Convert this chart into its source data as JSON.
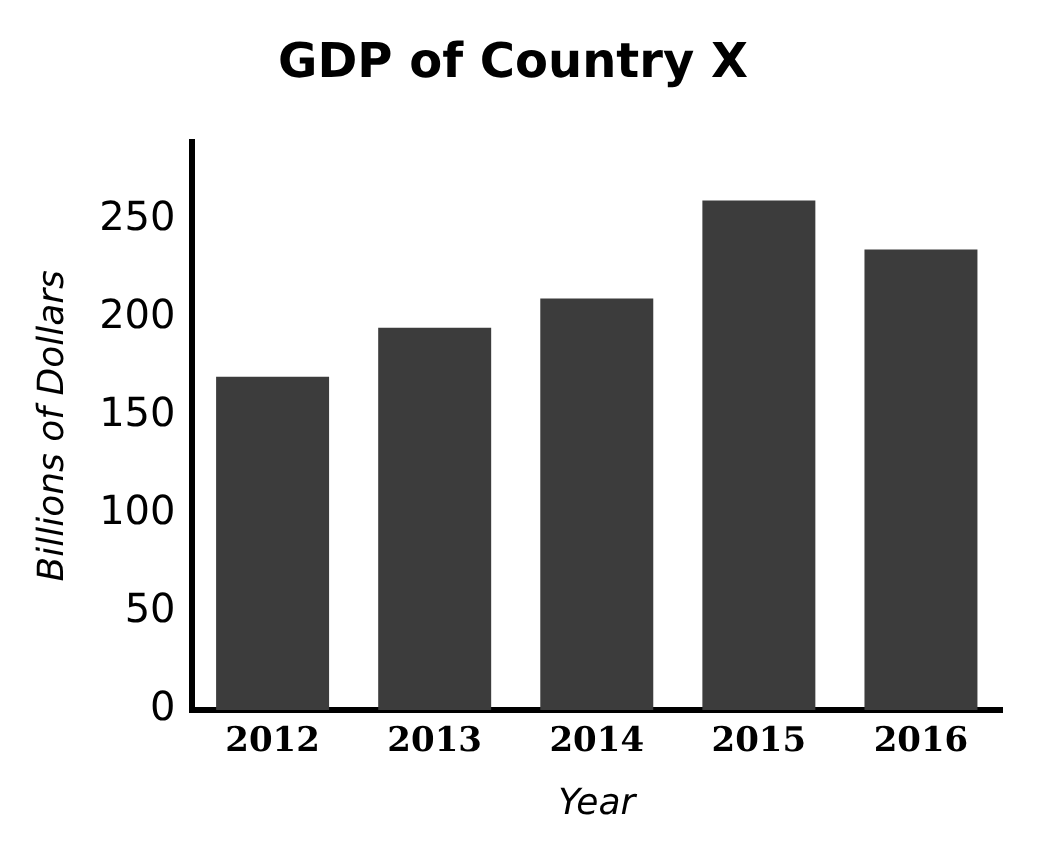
{
  "chart_data": {
    "type": "bar",
    "title": "GDP of Country X",
    "xlabel": "Year",
    "ylabel": "Billions of Dollars",
    "categories": [
      "2012",
      "2013",
      "2014",
      "2015",
      "2016"
    ],
    "values": [
      170,
      195,
      210,
      260,
      235
    ],
    "color": "#3c3c3c",
    "ylim": [
      0,
      290
    ],
    "yticks": [
      0,
      50,
      100,
      150,
      200,
      250
    ],
    "grid": false,
    "legend": false
  }
}
